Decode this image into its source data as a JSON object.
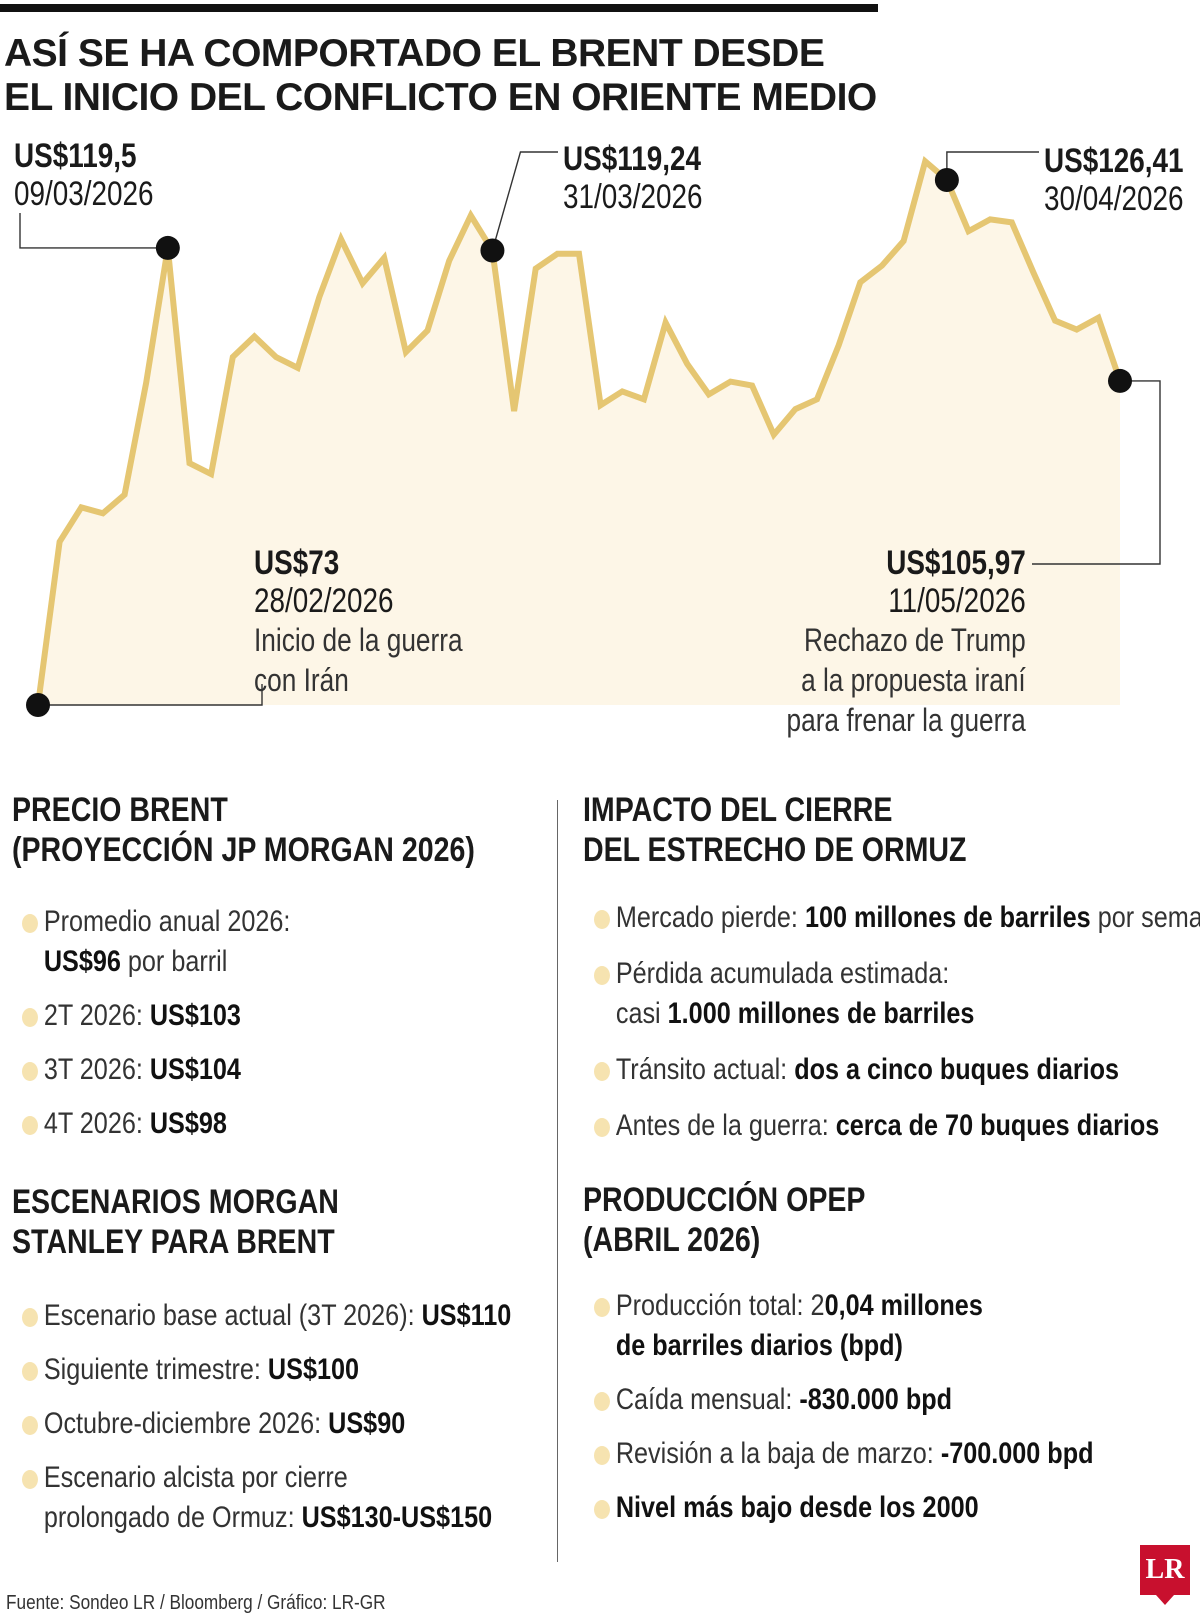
{
  "title": [
    "ASÍ SE HA COMPORTADO EL BRENT DESDE",
    "EL INICIO DEL CONFLICTO EN ORIENTE MEDIO"
  ],
  "colors": {
    "line": "#e5c672",
    "area": "#fdf6e7",
    "accent_dot": "#f6e3b0",
    "logo": "#c8102e"
  },
  "chart_data": {
    "type": "area",
    "title": "ASÍ SE HA COMPORTADO EL BRENT DESDE EL INICIO DEL CONFLICTO EN ORIENTE MEDIO",
    "xlabel": "",
    "ylabel": "",
    "ylim": [
      73,
      126.41
    ],
    "unit": "US$ por barril",
    "grid": false,
    "values": [
      73,
      89.6,
      93.1,
      92.5,
      94.4,
      105.8,
      119.5,
      97.6,
      96.5,
      108.4,
      110.5,
      108.4,
      107.3,
      114.5,
      120.4,
      115.9,
      118.5,
      108.9,
      111.1,
      118.2,
      122.8,
      119.24,
      102.9,
      117.4,
      118.9,
      118.9,
      103.5,
      104.9,
      104.1,
      111.9,
      107.7,
      104.6,
      105.9,
      105.5,
      100.5,
      103.1,
      104.1,
      109.6,
      116.0,
      117.7,
      120.2,
      128.3,
      126.41,
      121.2,
      122.4,
      122.1,
      117.0,
      112.1,
      111.2,
      112.4,
      105.97
    ],
    "annotations": [
      {
        "index": 0,
        "price": "US$73",
        "date": "28/02/2026",
        "note": [
          "Inicio de la guerra",
          "con Irán"
        ]
      },
      {
        "index": 6,
        "price": "US$119,5",
        "date": "09/03/2026",
        "note": []
      },
      {
        "index": 21,
        "price": "US$119,24",
        "date": "31/03/2026",
        "note": []
      },
      {
        "index": 42,
        "price": "US$126,41",
        "date": "30/04/2026",
        "note": []
      },
      {
        "index": 50,
        "price": "US$105,97",
        "date": "11/05/2026",
        "note": [
          "Rechazo de Trump",
          "a la propuesta iraní",
          "para frenar la guerra"
        ]
      }
    ]
  },
  "sections": {
    "jp": {
      "title": [
        "PRECIO BRENT",
        "(PROYECCIÓN JP MORGAN 2026)"
      ],
      "items": [
        {
          "pre": "Promedio anual 2026:",
          "line2_bold": "US$96",
          "line2_rest": " por barril"
        },
        {
          "pre": "2T 2026: ",
          "bold": "US$103"
        },
        {
          "pre": "3T 2026: ",
          "bold": "US$104"
        },
        {
          "pre": "4T 2026: ",
          "bold": "US$98"
        }
      ]
    },
    "ms": {
      "title": [
        "ESCENARIOS MORGAN",
        "STANLEY PARA BRENT"
      ],
      "items": [
        {
          "pre": "Escenario base actual (3T 2026): ",
          "bold": "US$110"
        },
        {
          "pre": "Siguiente trimestre: ",
          "bold": "US$100"
        },
        {
          "pre": "Octubre-diciembre 2026: ",
          "bold": "US$90"
        },
        {
          "pre": "Escenario alcista por cierre",
          "line2_rest": "prolongado de Ormuz: ",
          "line2_bold": "US$130-US$150"
        }
      ]
    },
    "ormuz": {
      "title": [
        "IMPACTO DEL CIERRE",
        "DEL ESTRECHO DE ORMUZ"
      ],
      "items": [
        {
          "pre": "Mercado pierde: ",
          "bold": "100 millones de barriles",
          "post": " por semana"
        },
        {
          "pre": "Pérdida acumulada estimada:",
          "line2_rest": "casi ",
          "line2_bold": "1.000 millones de barriles"
        },
        {
          "pre": "Tránsito actual: ",
          "bold": "dos a cinco buques diarios"
        },
        {
          "pre": "Antes de la guerra: ",
          "bold": "cerca de 70 buques diarios"
        }
      ]
    },
    "opep": {
      "title": [
        "PRODUCCIÓN OPEP",
        "(ABRIL 2026)"
      ],
      "items": [
        {
          "pre": "Producción total: 2",
          "bold": "0,04 millones",
          "line2_boldonly": "de barriles diarios (bpd)"
        },
        {
          "pre": "Caída mensual: ",
          "bold": "-830.000 bpd"
        },
        {
          "pre": "Revisión a la baja de marzo: ",
          "bold": "-700.000 bpd"
        },
        {
          "bold": "Nivel más bajo desde los 2000"
        }
      ]
    }
  },
  "source": "Fuente: Sondeo LR / Bloomberg / Gráfico: LR-GR",
  "logo": "LR"
}
